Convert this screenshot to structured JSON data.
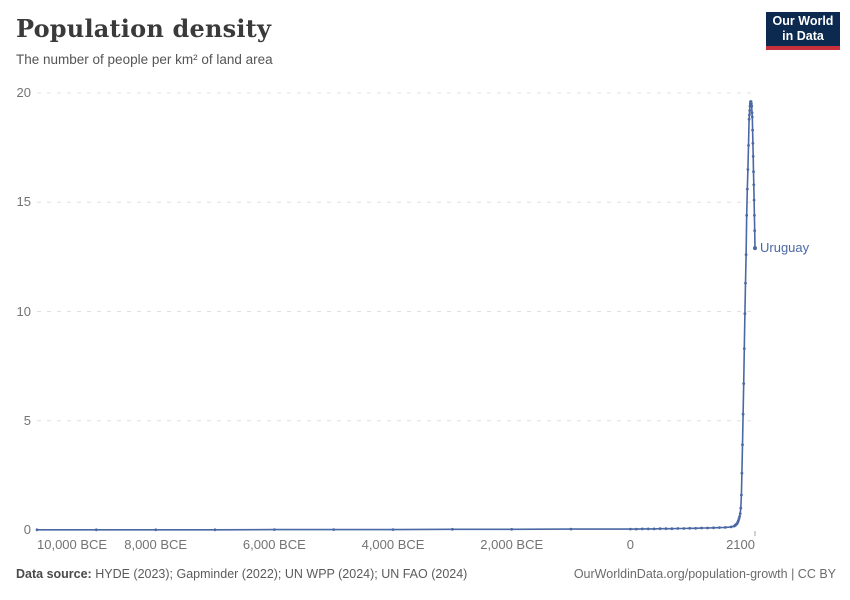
{
  "header": {
    "title": "Population density",
    "subtitle": "The number of people per km² of land area",
    "logo": {
      "line1": "Our World",
      "line2": "in Data",
      "bg_color": "#0c2950",
      "accent_color": "#c8303c"
    }
  },
  "chart_data": {
    "type": "line",
    "title": "Population density",
    "subtitle": "The number of people per km² of land area",
    "xlabel": "",
    "ylabel": "",
    "x_range": [
      -10000,
      2100
    ],
    "y_range": [
      0,
      20
    ],
    "grid": "horizontal-dashed",
    "grid_color": "#e0e0e0",
    "x_ticks": [
      {
        "value": -10000,
        "label": "10,000 BCE"
      },
      {
        "value": -8000,
        "label": "8,000 BCE"
      },
      {
        "value": -6000,
        "label": "6,000 BCE"
      },
      {
        "value": -4000,
        "label": "4,000 BCE"
      },
      {
        "value": -2000,
        "label": "2,000 BCE"
      },
      {
        "value": 0,
        "label": "0"
      },
      {
        "value": 2100,
        "label": "2100"
      }
    ],
    "y_ticks": [
      {
        "value": 0,
        "label": "0"
      },
      {
        "value": 5,
        "label": "5"
      },
      {
        "value": 10,
        "label": "10"
      },
      {
        "value": 15,
        "label": "15"
      },
      {
        "value": 20,
        "label": "20"
      }
    ],
    "legend_position": "end-of-line-label",
    "series": [
      {
        "name": "Uruguay",
        "color": "#4a68a3",
        "points": [
          [
            -10000,
            0.01
          ],
          [
            -9000,
            0.01
          ],
          [
            -8000,
            0.01
          ],
          [
            -7000,
            0.01
          ],
          [
            -6000,
            0.02
          ],
          [
            -5000,
            0.02
          ],
          [
            -4000,
            0.02
          ],
          [
            -3000,
            0.03
          ],
          [
            -2000,
            0.03
          ],
          [
            -1000,
            0.04
          ],
          [
            0,
            0.04
          ],
          [
            100,
            0.04
          ],
          [
            200,
            0.05
          ],
          [
            300,
            0.05
          ],
          [
            400,
            0.05
          ],
          [
            500,
            0.06
          ],
          [
            600,
            0.06
          ],
          [
            700,
            0.06
          ],
          [
            800,
            0.07
          ],
          [
            900,
            0.07
          ],
          [
            1000,
            0.08
          ],
          [
            1100,
            0.08
          ],
          [
            1200,
            0.09
          ],
          [
            1300,
            0.09
          ],
          [
            1400,
            0.1
          ],
          [
            1500,
            0.11
          ],
          [
            1600,
            0.12
          ],
          [
            1700,
            0.14
          ],
          [
            1750,
            0.18
          ],
          [
            1760,
            0.2
          ],
          [
            1770,
            0.22
          ],
          [
            1780,
            0.25
          ],
          [
            1790,
            0.27
          ],
          [
            1800,
            0.3
          ],
          [
            1810,
            0.36
          ],
          [
            1820,
            0.43
          ],
          [
            1830,
            0.52
          ],
          [
            1840,
            0.62
          ],
          [
            1850,
            0.75
          ],
          [
            1860,
            1.0
          ],
          [
            1870,
            1.6
          ],
          [
            1880,
            2.6
          ],
          [
            1890,
            3.9
          ],
          [
            1900,
            5.3
          ],
          [
            1910,
            6.7
          ],
          [
            1920,
            8.3
          ],
          [
            1930,
            9.9
          ],
          [
            1940,
            11.3
          ],
          [
            1950,
            12.6
          ],
          [
            1960,
            14.4
          ],
          [
            1970,
            15.6
          ],
          [
            1980,
            16.5
          ],
          [
            1990,
            17.6
          ],
          [
            2000,
            18.8
          ],
          [
            2005,
            19.0
          ],
          [
            2010,
            19.2
          ],
          [
            2015,
            19.4
          ],
          [
            2020,
            19.5
          ],
          [
            2025,
            19.6
          ],
          [
            2030,
            19.6
          ],
          [
            2035,
            19.6
          ],
          [
            2040,
            19.5
          ],
          [
            2045,
            19.4
          ],
          [
            2050,
            19.1
          ],
          [
            2055,
            18.9
          ],
          [
            2060,
            18.3
          ],
          [
            2065,
            17.7
          ],
          [
            2070,
            17.1
          ],
          [
            2075,
            16.4
          ],
          [
            2080,
            15.8
          ],
          [
            2085,
            15.1
          ],
          [
            2090,
            14.4
          ],
          [
            2095,
            13.7
          ],
          [
            2100,
            12.9
          ]
        ]
      }
    ]
  },
  "footer": {
    "source_label": "Data source:",
    "source_text": " HYDE (2023); Gapminder (2022); UN WPP (2024); UN FAO (2024)",
    "credit": "OurWorldinData.org/population-growth | CC BY"
  }
}
